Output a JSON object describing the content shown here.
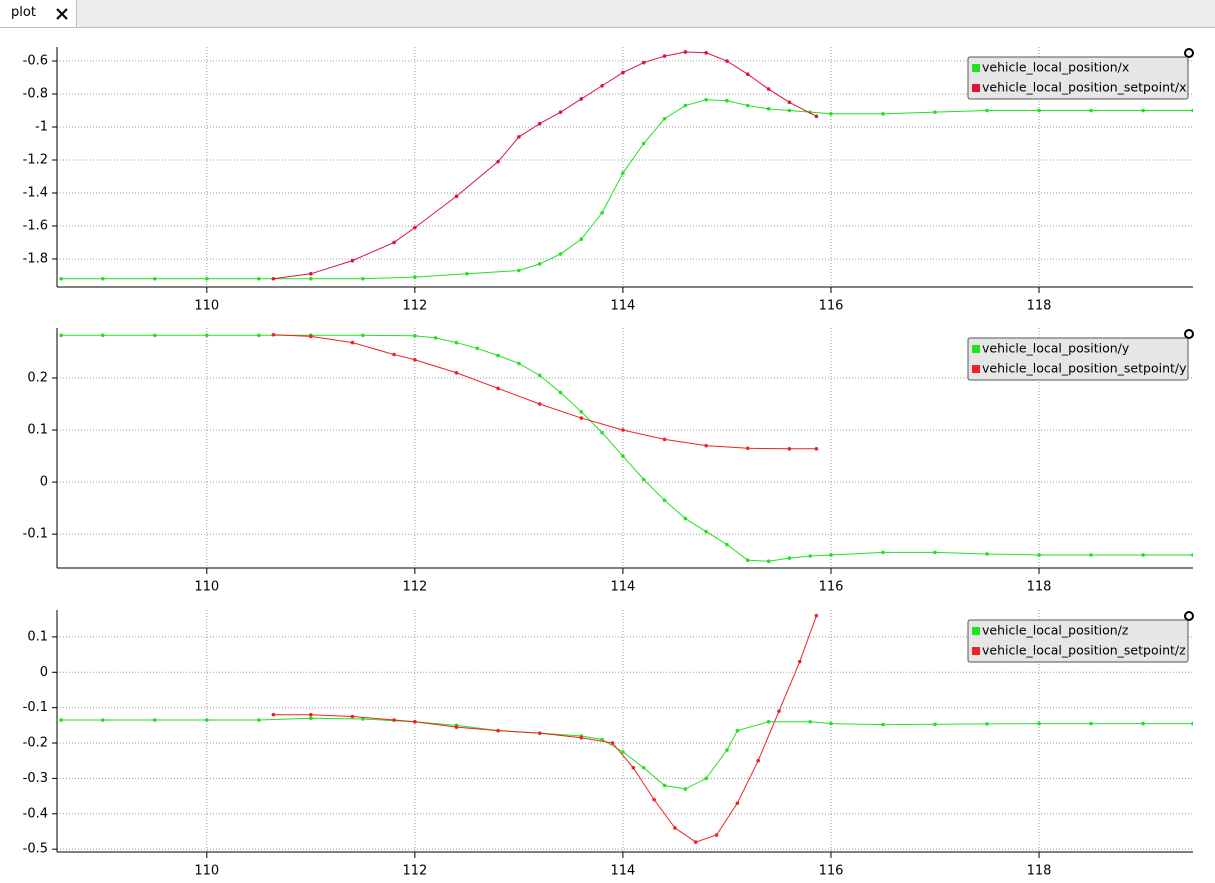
{
  "tab": {
    "title": "plot"
  },
  "chart_data": [
    {
      "type": "line",
      "xlim": [
        108.56,
        119.48
      ],
      "xticks": [
        110,
        112,
        114,
        116,
        118
      ],
      "ylim": [
        -1.97,
        -0.515
      ],
      "yticks": [
        -0.6,
        -0.8,
        -1,
        -1.2,
        -1.4,
        -1.6,
        -1.8
      ],
      "grid": true,
      "legend": "top-right",
      "series": [
        {
          "name": "vehicle_local_position/x",
          "color": "#22e022",
          "x": [
            108.6,
            109,
            109.5,
            110,
            110.5,
            111,
            111.5,
            112,
            112.5,
            113,
            113.2,
            113.4,
            113.6,
            113.8,
            114,
            114.2,
            114.4,
            114.6,
            114.8,
            115,
            115.2,
            115.4,
            115.6,
            115.8,
            116,
            116.5,
            117,
            117.5,
            118,
            118.5,
            119,
            119.48
          ],
          "values": [
            -1.92,
            -1.92,
            -1.92,
            -1.92,
            -1.92,
            -1.92,
            -1.92,
            -1.91,
            -1.89,
            -1.87,
            -1.83,
            -1.77,
            -1.68,
            -1.52,
            -1.28,
            -1.1,
            -0.95,
            -0.87,
            -0.835,
            -0.84,
            -0.87,
            -0.89,
            -0.9,
            -0.91,
            -0.92,
            -0.92,
            -0.91,
            -0.9,
            -0.9,
            -0.9,
            -0.9,
            -0.9
          ]
        },
        {
          "name": "vehicle_local_position_setpoint/x",
          "color": "#dc143c",
          "x": [
            110.64,
            111,
            111.4,
            111.8,
            112,
            112.4,
            112.8,
            113,
            113.2,
            113.4,
            113.6,
            113.8,
            114,
            114.2,
            114.4,
            114.6,
            114.8,
            115,
            115.2,
            115.4,
            115.6,
            115.86
          ],
          "values": [
            -1.92,
            -1.89,
            -1.81,
            -1.7,
            -1.61,
            -1.42,
            -1.21,
            -1.06,
            -0.98,
            -0.91,
            -0.83,
            -0.75,
            -0.67,
            -0.61,
            -0.57,
            -0.545,
            -0.55,
            -0.6,
            -0.68,
            -0.77,
            -0.85,
            -0.935
          ]
        }
      ]
    },
    {
      "type": "line",
      "xlim": [
        108.56,
        119.48
      ],
      "xticks": [
        110,
        112,
        114,
        116,
        118
      ],
      "ylim": [
        -0.165,
        0.296
      ],
      "yticks": [
        0.2,
        0.1,
        0,
        -0.1
      ],
      "grid": true,
      "legend": "top-right",
      "series": [
        {
          "name": "vehicle_local_position/y",
          "color": "#22e022",
          "x": [
            108.6,
            109,
            109.5,
            110,
            110.5,
            111,
            111.5,
            112,
            112.2,
            112.4,
            112.6,
            112.8,
            113,
            113.2,
            113.4,
            113.6,
            113.8,
            114,
            114.2,
            114.4,
            114.6,
            114.8,
            115,
            115.2,
            115.4,
            115.6,
            115.8,
            116,
            116.5,
            117,
            117.5,
            118,
            118.5,
            119,
            119.48
          ],
          "values": [
            0.282,
            0.282,
            0.282,
            0.282,
            0.282,
            0.282,
            0.282,
            0.281,
            0.277,
            0.268,
            0.257,
            0.243,
            0.228,
            0.205,
            0.172,
            0.135,
            0.095,
            0.05,
            0.005,
            -0.035,
            -0.07,
            -0.095,
            -0.12,
            -0.15,
            -0.152,
            -0.146,
            -0.142,
            -0.14,
            -0.135,
            -0.135,
            -0.138,
            -0.14,
            -0.14,
            -0.14,
            -0.14
          ]
        },
        {
          "name": "vehicle_local_position_setpoint/y",
          "color": "#ee2222",
          "x": [
            110.64,
            111,
            111.4,
            111.8,
            112,
            112.4,
            112.8,
            113.2,
            113.6,
            114,
            114.4,
            114.8,
            115.2,
            115.6,
            115.86
          ],
          "values": [
            0.283,
            0.28,
            0.268,
            0.245,
            0.235,
            0.21,
            0.18,
            0.15,
            0.123,
            0.1,
            0.082,
            0.07,
            0.065,
            0.064,
            0.064
          ]
        }
      ]
    },
    {
      "type": "line",
      "xlim": [
        108.56,
        119.48
      ],
      "xticks": [
        110,
        112,
        114,
        116,
        118
      ],
      "ylim": [
        -0.508,
        0.176
      ],
      "yticks": [
        0.1,
        0,
        -0.1,
        -0.2,
        -0.3,
        -0.4,
        -0.5
      ],
      "grid": true,
      "legend": "top-right",
      "series": [
        {
          "name": "vehicle_local_position/z",
          "color": "#22e022",
          "x": [
            108.6,
            109,
            109.5,
            110,
            110.5,
            111,
            111.5,
            112,
            112.4,
            112.8,
            113.2,
            113.6,
            113.8,
            114,
            114.2,
            114.4,
            114.6,
            114.8,
            115,
            115.1,
            115.4,
            115.8,
            116,
            116.5,
            117,
            117.5,
            118,
            118.5,
            119,
            119.48
          ],
          "values": [
            -0.135,
            -0.135,
            -0.135,
            -0.135,
            -0.135,
            -0.13,
            -0.132,
            -0.14,
            -0.15,
            -0.165,
            -0.172,
            -0.18,
            -0.19,
            -0.225,
            -0.27,
            -0.32,
            -0.33,
            -0.3,
            -0.22,
            -0.165,
            -0.14,
            -0.14,
            -0.145,
            -0.148,
            -0.147,
            -0.146,
            -0.145,
            -0.145,
            -0.145,
            -0.145
          ]
        },
        {
          "name": "vehicle_local_position_setpoint/z",
          "color": "#ee2222",
          "x": [
            110.64,
            111,
            111.4,
            111.8,
            112,
            112.4,
            112.8,
            113.2,
            113.6,
            113.9,
            114.1,
            114.3,
            114.5,
            114.7,
            114.9,
            115.1,
            115.3,
            115.5,
            115.7,
            115.86
          ],
          "values": [
            -0.12,
            -0.12,
            -0.125,
            -0.135,
            -0.14,
            -0.155,
            -0.165,
            -0.172,
            -0.185,
            -0.2,
            -0.27,
            -0.36,
            -0.44,
            -0.48,
            -0.46,
            -0.37,
            -0.25,
            -0.11,
            0.03,
            0.16
          ]
        }
      ]
    }
  ]
}
